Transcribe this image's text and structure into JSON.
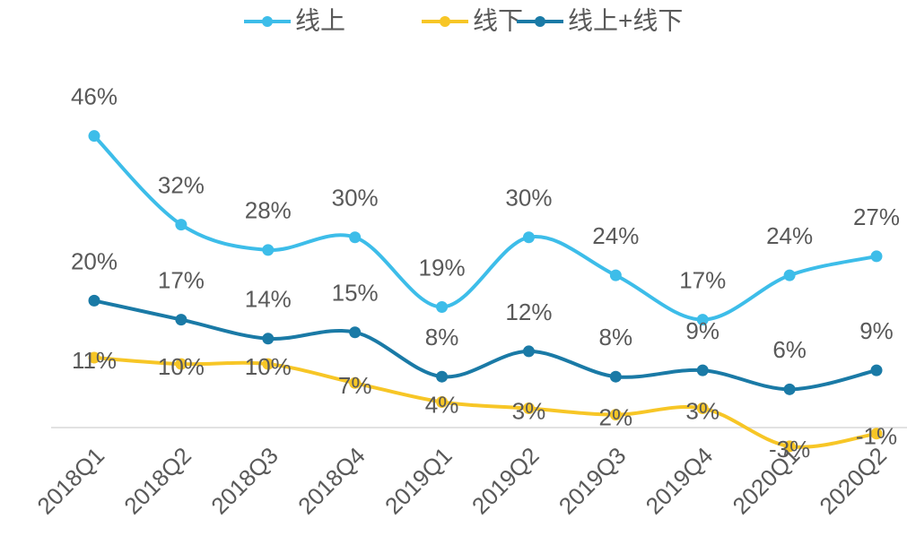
{
  "chart_data": {
    "type": "line",
    "categories": [
      "2018Q1",
      "2018Q2",
      "2018Q3",
      "2018Q4",
      "2019Q1",
      "2019Q2",
      "2019Q3",
      "2019Q4",
      "2020Q1",
      "2020Q2"
    ],
    "series": [
      {
        "name": "线上",
        "color": "#3dbde9",
        "values": [
          46,
          32,
          28,
          30,
          19,
          30,
          24,
          17,
          24,
          27
        ],
        "value_labels": [
          "46%",
          "32%",
          "28%",
          "30%",
          "19%",
          "30%",
          "24%",
          "17%",
          "24%",
          "27%"
        ]
      },
      {
        "name": "线下",
        "color": "#f7c626",
        "values": [
          11,
          10,
          10,
          7,
          4,
          3,
          2,
          3,
          -3,
          -1
        ],
        "value_labels": [
          "11%",
          "10%",
          "10%",
          "7%",
          "4%",
          "3%",
          "2%",
          "3%",
          "-3%",
          "-1%"
        ]
      },
      {
        "name": "线上+线下",
        "color": "#1a7aa6",
        "values": [
          20,
          17,
          14,
          15,
          8,
          12,
          8,
          9,
          6,
          9
        ],
        "value_labels": [
          "20%",
          "17%",
          "14%",
          "15%",
          "8%",
          "12%",
          "8%",
          "9%",
          "6%",
          "9%"
        ]
      }
    ],
    "ylim": [
      -4,
      56
    ],
    "legend": "top"
  }
}
